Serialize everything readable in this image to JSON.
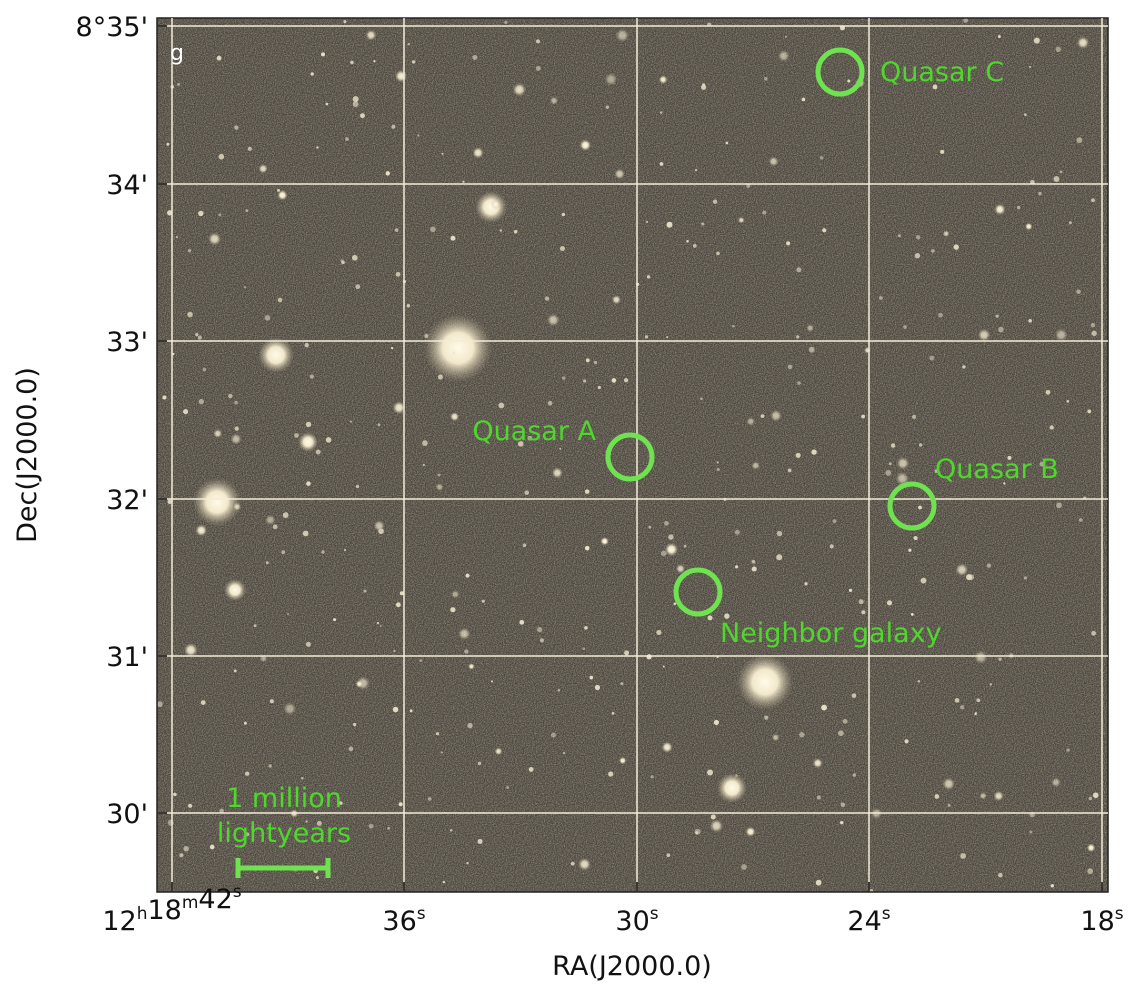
{
  "panel_label": "g",
  "x_axis": {
    "label": "RA(J2000.0)",
    "ticks": [
      "12h18m42s",
      "36s",
      "30s",
      "24s",
      "18s"
    ]
  },
  "y_axis": {
    "label": "Dec(J2000.0)",
    "ticks": [
      "8°35'",
      "34'",
      "33'",
      "32'",
      "31'",
      "30'"
    ]
  },
  "annotations": [
    "Quasar C",
    "Quasar A",
    "Quasar B",
    "Neighbor galaxy"
  ],
  "scale_bar": {
    "label": [
      "1 million",
      "lightyears"
    ]
  }
}
